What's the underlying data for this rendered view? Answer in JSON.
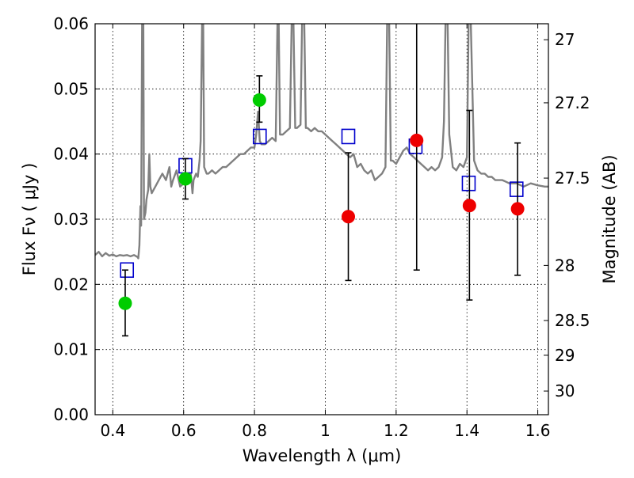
{
  "chart_data": {
    "type": "scatter",
    "xlabel": "Wavelength  λ (μm)",
    "ylabel": "Flux  Fν  ( μJy )",
    "ylabel_right": "Magnitude (AB)",
    "xlim": [
      0.35,
      1.63
    ],
    "ylim": [
      0.0,
      0.06
    ],
    "grid": true,
    "x_ticks": [
      {
        "value": 0.4,
        "label": "0.4"
      },
      {
        "value": 0.6,
        "label": "0.6"
      },
      {
        "value": 0.8,
        "label": "0.8"
      },
      {
        "value": 1.0,
        "label": "1"
      },
      {
        "value": 1.2,
        "label": "1.2"
      },
      {
        "value": 1.4,
        "label": "1.4"
      },
      {
        "value": 1.6,
        "label": "1.6"
      }
    ],
    "y_ticks": [
      {
        "value": 0.0,
        "label": "0.00"
      },
      {
        "value": 0.01,
        "label": "0.01"
      },
      {
        "value": 0.02,
        "label": "0.02"
      },
      {
        "value": 0.03,
        "label": "0.03"
      },
      {
        "value": 0.04,
        "label": "0.04"
      },
      {
        "value": 0.05,
        "label": "0.05"
      },
      {
        "value": 0.06,
        "label": "0.06"
      }
    ],
    "right_ticks": [
      {
        "label": "27",
        "mag": 27.0
      },
      {
        "label": "27.2",
        "mag": 27.2
      },
      {
        "label": "27.5",
        "mag": 27.5
      },
      {
        "label": "28",
        "mag": 28.0
      },
      {
        "label": "28.5",
        "mag": 28.5
      },
      {
        "label": "29",
        "mag": 29.0
      },
      {
        "label": "30",
        "mag": 30.0
      }
    ],
    "series": [
      {
        "name": "model spectrum",
        "kind": "line",
        "color": "#808080",
        "points": [
          [
            0.35,
            0.0245
          ],
          [
            0.36,
            0.025
          ],
          [
            0.37,
            0.0243
          ],
          [
            0.38,
            0.0248
          ],
          [
            0.39,
            0.0244
          ],
          [
            0.4,
            0.0246
          ],
          [
            0.41,
            0.0243
          ],
          [
            0.42,
            0.0245
          ],
          [
            0.43,
            0.0244
          ],
          [
            0.44,
            0.0245
          ],
          [
            0.45,
            0.0243
          ],
          [
            0.46,
            0.0245
          ],
          [
            0.47,
            0.0242
          ],
          [
            0.472,
            0.024
          ],
          [
            0.475,
            0.026
          ],
          [
            0.478,
            0.032
          ],
          [
            0.48,
            0.029
          ],
          [
            0.483,
            0.062
          ],
          [
            0.486,
            0.062
          ],
          [
            0.488,
            0.03
          ],
          [
            0.492,
            0.031
          ],
          [
            0.495,
            0.033
          ],
          [
            0.5,
            0.0345
          ],
          [
            0.503,
            0.04
          ],
          [
            0.506,
            0.035
          ],
          [
            0.51,
            0.034
          ],
          [
            0.52,
            0.035
          ],
          [
            0.53,
            0.036
          ],
          [
            0.54,
            0.037
          ],
          [
            0.55,
            0.036
          ],
          [
            0.56,
            0.038
          ],
          [
            0.565,
            0.035
          ],
          [
            0.57,
            0.036
          ],
          [
            0.58,
            0.0375
          ],
          [
            0.59,
            0.035
          ],
          [
            0.6,
            0.0355
          ],
          [
            0.61,
            0.036
          ],
          [
            0.62,
            0.037
          ],
          [
            0.625,
            0.034
          ],
          [
            0.628,
            0.036
          ],
          [
            0.635,
            0.037
          ],
          [
            0.64,
            0.0365
          ],
          [
            0.645,
            0.039
          ],
          [
            0.648,
            0.042
          ],
          [
            0.652,
            0.06
          ],
          [
            0.655,
            0.062
          ],
          [
            0.658,
            0.038
          ],
          [
            0.665,
            0.037
          ],
          [
            0.67,
            0.037
          ],
          [
            0.68,
            0.0375
          ],
          [
            0.69,
            0.037
          ],
          [
            0.7,
            0.0375
          ],
          [
            0.71,
            0.038
          ],
          [
            0.72,
            0.038
          ],
          [
            0.73,
            0.0385
          ],
          [
            0.74,
            0.039
          ],
          [
            0.75,
            0.0395
          ],
          [
            0.76,
            0.04
          ],
          [
            0.77,
            0.04
          ],
          [
            0.78,
            0.0405
          ],
          [
            0.79,
            0.041
          ],
          [
            0.8,
            0.041
          ],
          [
            0.805,
            0.043
          ],
          [
            0.81,
            0.0465
          ],
          [
            0.815,
            0.042
          ],
          [
            0.82,
            0.0415
          ],
          [
            0.83,
            0.0415
          ],
          [
            0.84,
            0.042
          ],
          [
            0.85,
            0.0425
          ],
          [
            0.86,
            0.042
          ],
          [
            0.865,
            0.06
          ],
          [
            0.868,
            0.062
          ],
          [
            0.872,
            0.043
          ],
          [
            0.88,
            0.043
          ],
          [
            0.89,
            0.0435
          ],
          [
            0.9,
            0.044
          ],
          [
            0.905,
            0.06
          ],
          [
            0.91,
            0.06
          ],
          [
            0.915,
            0.044
          ],
          [
            0.92,
            0.044
          ],
          [
            0.93,
            0.0445
          ],
          [
            0.935,
            0.062
          ],
          [
            0.94,
            0.062
          ],
          [
            0.945,
            0.044
          ],
          [
            0.95,
            0.044
          ],
          [
            0.96,
            0.0435
          ],
          [
            0.97,
            0.044
          ],
          [
            0.98,
            0.0435
          ],
          [
            0.99,
            0.0435
          ],
          [
            1.0,
            0.043
          ],
          [
            1.01,
            0.0425
          ],
          [
            1.02,
            0.042
          ],
          [
            1.03,
            0.0415
          ],
          [
            1.04,
            0.041
          ],
          [
            1.05,
            0.0405
          ],
          [
            1.06,
            0.04
          ],
          [
            1.07,
            0.0395
          ],
          [
            1.08,
            0.04
          ],
          [
            1.09,
            0.038
          ],
          [
            1.1,
            0.0385
          ],
          [
            1.11,
            0.0375
          ],
          [
            1.12,
            0.037
          ],
          [
            1.13,
            0.0375
          ],
          [
            1.14,
            0.036
          ],
          [
            1.15,
            0.0365
          ],
          [
            1.16,
            0.037
          ],
          [
            1.17,
            0.038
          ],
          [
            1.175,
            0.062
          ],
          [
            1.18,
            0.062
          ],
          [
            1.185,
            0.039
          ],
          [
            1.19,
            0.039
          ],
          [
            1.2,
            0.0385
          ],
          [
            1.21,
            0.0395
          ],
          [
            1.22,
            0.0405
          ],
          [
            1.23,
            0.041
          ],
          [
            1.24,
            0.04
          ],
          [
            1.25,
            0.0395
          ],
          [
            1.26,
            0.039
          ],
          [
            1.27,
            0.0385
          ],
          [
            1.28,
            0.038
          ],
          [
            1.29,
            0.0375
          ],
          [
            1.3,
            0.038
          ],
          [
            1.31,
            0.0375
          ],
          [
            1.32,
            0.038
          ],
          [
            1.33,
            0.0395
          ],
          [
            1.335,
            0.045
          ],
          [
            1.34,
            0.062
          ],
          [
            1.345,
            0.062
          ],
          [
            1.35,
            0.043
          ],
          [
            1.36,
            0.038
          ],
          [
            1.37,
            0.0375
          ],
          [
            1.38,
            0.0385
          ],
          [
            1.39,
            0.038
          ],
          [
            1.4,
            0.0395
          ],
          [
            1.405,
            0.062
          ],
          [
            1.41,
            0.062
          ],
          [
            1.42,
            0.039
          ],
          [
            1.43,
            0.0375
          ],
          [
            1.44,
            0.037
          ],
          [
            1.45,
            0.037
          ],
          [
            1.46,
            0.0365
          ],
          [
            1.47,
            0.0365
          ],
          [
            1.48,
            0.036
          ],
          [
            1.5,
            0.036
          ],
          [
            1.52,
            0.0355
          ],
          [
            1.54,
            0.0355
          ],
          [
            1.56,
            0.035
          ],
          [
            1.58,
            0.0355
          ],
          [
            1.6,
            0.0352
          ],
          [
            1.62,
            0.035
          ],
          [
            1.63,
            0.035
          ]
        ]
      },
      {
        "name": "model photometry",
        "kind": "open-square",
        "color": "#0000cc",
        "points": [
          [
            0.44,
            0.0222
          ],
          [
            0.605,
            0.0382
          ],
          [
            0.815,
            0.0427
          ],
          [
            1.065,
            0.0427
          ],
          [
            1.255,
            0.0412
          ],
          [
            1.405,
            0.0355
          ],
          [
            1.54,
            0.0346
          ]
        ]
      },
      {
        "name": "observed photometry (green)",
        "kind": "filled-circle",
        "color": "#00cc00",
        "points": [
          {
            "x": 0.435,
            "y": 0.0171,
            "err": [
              0.0121,
              0.0222
            ]
          },
          {
            "x": 0.605,
            "y": 0.0362,
            "err": [
              0.0331,
              0.0393
            ]
          },
          {
            "x": 0.814,
            "y": 0.0483,
            "err": [
              0.0449,
              0.052
            ]
          }
        ]
      },
      {
        "name": "observed photometry (red)",
        "kind": "filled-circle",
        "color": "#ee0000",
        "points": [
          {
            "x": 1.065,
            "y": 0.0304,
            "err": [
              0.0206,
              0.0402
            ]
          },
          {
            "x": 1.258,
            "y": 0.0421,
            "err": [
              0.0222,
              0.0625
            ]
          },
          {
            "x": 1.407,
            "y": 0.0321,
            "err": [
              0.0176,
              0.0467
            ]
          },
          {
            "x": 1.543,
            "y": 0.0316,
            "err": [
              0.0214,
              0.0417
            ]
          }
        ]
      }
    ]
  }
}
